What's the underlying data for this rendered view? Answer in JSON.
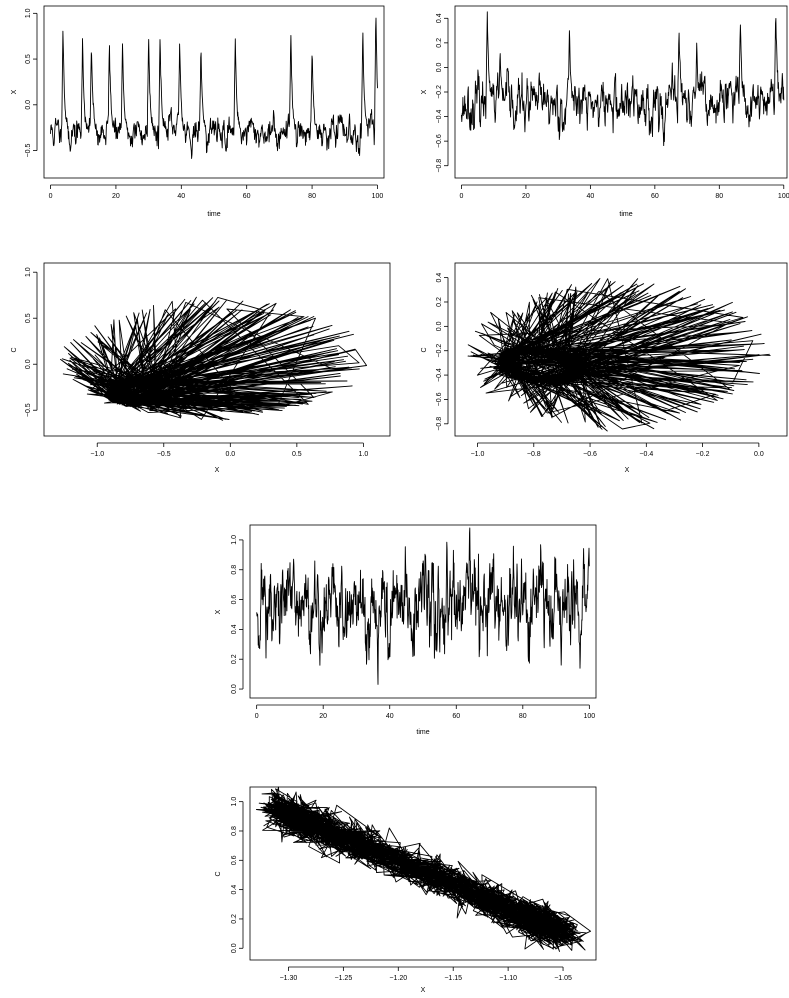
{
  "chart_data": [
    {
      "id": "p1",
      "type": "line",
      "xlabel": "time",
      "ylabel": "X",
      "xlim": [
        -2,
        102
      ],
      "ylim": [
        -0.8,
        1.08
      ],
      "xticks": [
        0,
        20,
        40,
        60,
        80,
        100
      ],
      "yticks": [
        -0.5,
        0.0,
        0.5,
        1.0
      ],
      "xtick_labels": [
        "0",
        "20",
        "40",
        "60",
        "80",
        "100"
      ],
      "ytick_labels": [
        "−0.5",
        "0.0",
        "0.5",
        "1.0"
      ],
      "series": [
        {
          "x_start": 0,
          "x_end": 100,
          "n": 900,
          "kind": "spiky",
          "baseline": -0.3,
          "noise": 0.12,
          "seed": 11,
          "spikes": [
            {
              "x": 3.8,
              "y": 0.88
            },
            {
              "x": 9.8,
              "y": 0.72
            },
            {
              "x": 12.5,
              "y": 0.7
            },
            {
              "x": 18,
              "y": 0.7
            },
            {
              "x": 22,
              "y": 0.68
            },
            {
              "x": 30,
              "y": 0.78
            },
            {
              "x": 33.5,
              "y": 0.75
            },
            {
              "x": 39.5,
              "y": 0.72
            },
            {
              "x": 46,
              "y": 0.68
            },
            {
              "x": 56.5,
              "y": 0.78
            },
            {
              "x": 73.5,
              "y": 0.82
            },
            {
              "x": 80,
              "y": 0.62
            },
            {
              "x": 95.5,
              "y": 0.88
            },
            {
              "x": 99.5,
              "y": 1.06
            }
          ]
        }
      ]
    },
    {
      "id": "p2",
      "type": "line",
      "xlabel": "time",
      "ylabel": "X",
      "xlim": [
        -2,
        101
      ],
      "ylim": [
        -0.9,
        0.5
      ],
      "xticks": [
        0,
        20,
        40,
        60,
        80,
        100
      ],
      "yticks": [
        -0.8,
        -0.6,
        -0.4,
        -0.2,
        0.0,
        0.2,
        0.4
      ],
      "xtick_labels": [
        "0",
        "20",
        "40",
        "60",
        "80",
        "100"
      ],
      "ytick_labels": [
        "−0.8",
        "−0.6",
        "−0.4",
        "−0.2",
        "0.0",
        "0.2",
        "0.4"
      ],
      "series": [
        {
          "x_start": 0,
          "x_end": 100,
          "n": 900,
          "kind": "spiky",
          "baseline": -0.3,
          "noise": 0.14,
          "seed": 23,
          "spikes": [
            {
              "x": 8,
              "y": 0.46
            },
            {
              "x": 12,
              "y": 0.1
            },
            {
              "x": 33.5,
              "y": 0.3
            },
            {
              "x": 67.5,
              "y": 0.34
            },
            {
              "x": 73,
              "y": 0.18
            },
            {
              "x": 86.5,
              "y": 0.42
            },
            {
              "x": 97.5,
              "y": 0.48
            }
          ]
        }
      ]
    },
    {
      "id": "p3",
      "type": "line",
      "xlabel": "X",
      "ylabel": "C",
      "xlim": [
        -1.4,
        1.2
      ],
      "ylim": [
        -0.78,
        1.1
      ],
      "xticks": [
        -1.0,
        -0.5,
        0.0,
        0.5,
        1.0
      ],
      "yticks": [
        -0.5,
        0.0,
        0.5,
        1.0
      ],
      "xtick_labels": [
        "−1.0",
        "−0.5",
        "0.0",
        "0.5",
        "1.0"
      ],
      "ytick_labels": [
        "−0.5",
        "0.0",
        "0.5",
        "1.0"
      ],
      "series": [
        {
          "kind": "phase-loop",
          "n": 2200,
          "seed": 37,
          "center": [
            -0.72,
            -0.3
          ],
          "cluster_spread": [
            0.18,
            0.12
          ],
          "loop_top": 0.72,
          "loop_right": 1.05,
          "loop_left": -1.3,
          "loop_bottom": -0.62
        }
      ]
    },
    {
      "id": "p4",
      "type": "line",
      "xlabel": "X",
      "ylabel": "C",
      "xlim": [
        -1.08,
        0.1
      ],
      "ylim": [
        -0.9,
        0.52
      ],
      "xticks": [
        -1.0,
        -0.8,
        -0.6,
        -0.4,
        -0.2,
        0.0
      ],
      "yticks": [
        -0.8,
        -0.6,
        -0.4,
        -0.2,
        0.0,
        0.2,
        0.4
      ],
      "xtick_labels": [
        "−1.0",
        "−0.8",
        "−0.6",
        "−0.4",
        "−0.2",
        "0.0"
      ],
      "ytick_labels": [
        "−0.8",
        "−0.6",
        "−0.4",
        "−0.2",
        "0.0",
        "0.2",
        "0.4"
      ],
      "series": [
        {
          "kind": "phase-loop",
          "n": 2200,
          "seed": 53,
          "center": [
            -0.78,
            -0.32
          ],
          "cluster_spread": [
            0.12,
            0.14
          ],
          "loop_top": 0.4,
          "loop_right": 0.05,
          "loop_left": -1.05,
          "loop_bottom": -0.85
        }
      ]
    },
    {
      "id": "p5",
      "type": "line",
      "xlabel": "time",
      "ylabel": "X",
      "xlim": [
        -2,
        102
      ],
      "ylim": [
        -0.06,
        1.1
      ],
      "xticks": [
        0,
        20,
        40,
        60,
        80,
        100
      ],
      "yticks": [
        0.0,
        0.2,
        0.4,
        0.6,
        0.8,
        1.0
      ],
      "xtick_labels": [
        "0",
        "20",
        "40",
        "60",
        "80",
        "100"
      ],
      "ytick_labels": [
        "0.0",
        "0.2",
        "0.4",
        "0.6",
        "0.8",
        "1.0"
      ],
      "series": [
        {
          "x_start": 0,
          "x_end": 100,
          "n": 1100,
          "kind": "noisy",
          "baseline": 0.55,
          "noise": 0.2,
          "seed": 71,
          "min": -0.05,
          "max": 1.08
        }
      ]
    },
    {
      "id": "p6",
      "type": "line",
      "xlabel": "X",
      "ylabel": "C",
      "xlim": [
        -1.335,
        -1.02
      ],
      "ylim": [
        -0.08,
        1.1
      ],
      "xticks": [
        -1.3,
        -1.25,
        -1.2,
        -1.15,
        -1.1,
        -1.05
      ],
      "yticks": [
        0.0,
        0.2,
        0.4,
        0.6,
        0.8,
        1.0
      ],
      "xtick_labels": [
        "−1.30",
        "−1.25",
        "−1.20",
        "−1.15",
        "−1.10",
        "−1.05"
      ],
      "ytick_labels": [
        "0.0",
        "0.2",
        "0.4",
        "0.6",
        "0.8",
        "1.0"
      ],
      "series": [
        {
          "kind": "diagonal-band",
          "n": 2400,
          "seed": 89,
          "from": [
            -1.32,
            0.98
          ],
          "to": [
            -1.04,
            0.08
          ],
          "spread": 0.12
        }
      ]
    }
  ]
}
